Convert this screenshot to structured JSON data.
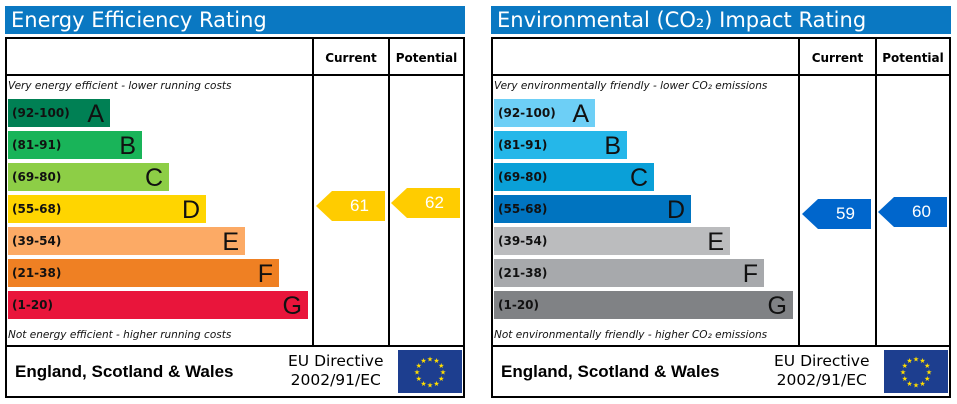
{
  "panels": [
    {
      "title": "Energy Efficiency Rating",
      "col_current": "Current",
      "col_potential": "Potential",
      "top_note": "Very energy efficient - lower running costs",
      "bottom_note": "Not energy efficient - higher running costs",
      "footer_region": "England, Scotland & Wales",
      "footer_directive_1": "EU Directive",
      "footer_directive_2": "2002/91/EC",
      "current": "61",
      "potential": "62",
      "current_color": "#ffcc00",
      "potential_color": "#ffcc00"
    },
    {
      "title": "Environmental (CO₂) Impact Rating",
      "col_current": "Current",
      "col_potential": "Potential",
      "top_note": "Very environmentally friendly - lower CO₂ emissions",
      "bottom_note": "Not environmentally friendly - higher CO₂ emissions",
      "footer_region": "England, Scotland & Wales",
      "footer_directive_1": "EU Directive",
      "footer_directive_2": "2002/91/EC",
      "current": "59",
      "potential": "60",
      "current_color": "#0066cc",
      "potential_color": "#0066cc"
    }
  ],
  "chart_data": [
    {
      "type": "bar",
      "title": "Energy Efficiency Rating",
      "categories": [
        "A",
        "B",
        "C",
        "D",
        "E",
        "F",
        "G"
      ],
      "ranges": [
        "(92-100)",
        "(81-91)",
        "(69-80)",
        "(55-68)",
        "(39-54)",
        "(21-38)",
        "(1-20)"
      ],
      "colors": [
        "#008054",
        "#19b459",
        "#8dce46",
        "#ffd500",
        "#fcaa65",
        "#ef8023",
        "#e9153b"
      ],
      "current": 61,
      "potential": 62
    },
    {
      "type": "bar",
      "title": "Environmental (CO₂) Impact Rating",
      "categories": [
        "A",
        "B",
        "C",
        "D",
        "E",
        "F",
        "G"
      ],
      "ranges": [
        "(92-100)",
        "(81-91)",
        "(69-80)",
        "(55-68)",
        "(39-54)",
        "(21-38)",
        "(1-20)"
      ],
      "colors": [
        "#6dcff6",
        "#25b7e9",
        "#0aa0d8",
        "#0074c0",
        "#bbbcbe",
        "#a7a9ac",
        "#808285"
      ],
      "current": 59,
      "potential": 60
    }
  ]
}
